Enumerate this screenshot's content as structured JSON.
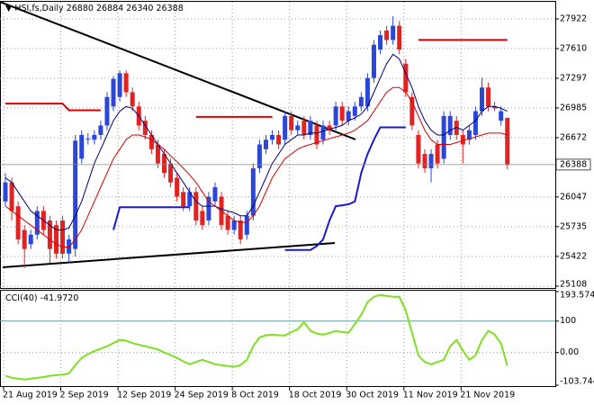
{
  "chart_data": [
    {
      "type": "candlestick",
      "title": "HSI,fs,Daily",
      "categories": [
        "21 Aug 2019",
        null,
        null,
        null,
        null,
        null,
        null,
        null,
        null,
        "2 Sep 2019",
        null,
        null,
        null,
        null,
        null,
        null,
        null,
        null,
        "12 Sep 2019",
        null,
        null,
        null,
        null,
        null,
        null,
        null,
        null,
        "24 Sep 2019",
        null,
        null,
        null,
        null,
        null,
        null,
        null,
        null,
        "8 Oct 2019",
        null,
        null,
        null,
        null,
        null,
        null,
        null,
        null,
        "18 Oct 2019",
        null,
        null,
        null,
        null,
        null,
        null,
        null,
        null,
        "30 Oct 2019",
        null,
        null,
        null,
        null,
        null,
        null,
        null,
        null,
        "11 Nov 2019",
        null,
        null,
        null,
        null,
        null,
        null,
        null,
        null,
        "21 Nov 2019",
        null,
        null,
        null,
        null,
        null,
        null,
        null
      ],
      "open": [
        26000,
        26200,
        25950,
        25700,
        25550,
        25650,
        25900,
        25800,
        25750,
        25800,
        25450,
        25500,
        26450,
        26650,
        26650,
        26700,
        26800,
        27000,
        27100,
        27350,
        27150,
        27000,
        26850,
        26700,
        26600,
        26500,
        26400,
        26250,
        26100,
        25950,
        26100,
        25900,
        25800,
        26000,
        26050,
        25850,
        25700,
        25800,
        25650,
        25850,
        26350,
        26550,
        26650,
        26700,
        26650,
        26900,
        26750,
        26850,
        26700,
        26800,
        26650,
        26800,
        26800,
        27000,
        26850,
        26900,
        27000,
        27000,
        27300,
        27600,
        27800,
        27700,
        27850,
        27450,
        27100,
        26700,
        26500,
        26350,
        26600,
        26450,
        26700,
        26850,
        26700,
        26650,
        26700,
        26950,
        27200,
        27000,
        26850,
        26880
      ],
      "high": [
        26300,
        26250,
        26000,
        25750,
        25700,
        25950,
        25950,
        25850,
        25800,
        25850,
        25650,
        26700,
        26750,
        26720,
        26750,
        26850,
        27150,
        27320,
        27380,
        27380,
        27200,
        27050,
        26900,
        26750,
        26650,
        26550,
        26450,
        26300,
        26150,
        26150,
        26150,
        25950,
        26100,
        26200,
        26100,
        25900,
        25850,
        25850,
        25900,
        26400,
        26650,
        26700,
        26750,
        26750,
        26950,
        26950,
        26850,
        26900,
        26900,
        26850,
        26850,
        26850,
        27050,
        27050,
        27000,
        27050,
        27150,
        27350,
        27700,
        27800,
        27850,
        27950,
        27900,
        27500,
        27150,
        26750,
        26550,
        26550,
        26650,
        26950,
        26950,
        26900,
        26750,
        26800,
        27000,
        27300,
        27250,
        27050,
        27000,
        26884
      ],
      "low": [
        25950,
        25800,
        25550,
        25300,
        25500,
        25600,
        25650,
        25350,
        25400,
        25400,
        25350,
        25420,
        26400,
        26600,
        26600,
        26650,
        26750,
        26950,
        27050,
        27100,
        26950,
        26750,
        26650,
        26500,
        26350,
        26250,
        26150,
        26000,
        25900,
        25900,
        25750,
        25700,
        25750,
        25950,
        25700,
        25650,
        25650,
        25550,
        25600,
        25800,
        26300,
        26500,
        26600,
        26550,
        26600,
        26700,
        26700,
        26650,
        26650,
        26550,
        26600,
        26700,
        26750,
        26800,
        26800,
        26850,
        26950,
        26950,
        27250,
        27550,
        27650,
        27650,
        27550,
        27100,
        26750,
        26350,
        26300,
        26200,
        26350,
        26400,
        26650,
        26650,
        26400,
        26600,
        26650,
        26900,
        26950,
        26950,
        26800,
        26340
      ],
      "close": [
        26200,
        25900,
        25600,
        25500,
        25650,
        25900,
        25700,
        25500,
        25450,
        25450,
        25600,
        26640,
        26700,
        26660,
        26700,
        26800,
        27100,
        27290,
        27350,
        27150,
        27000,
        26800,
        26700,
        26550,
        26400,
        26300,
        26200,
        26050,
        25950,
        26100,
        25800,
        25750,
        26050,
        26150,
        25750,
        25700,
        25800,
        25600,
        25850,
        26350,
        26600,
        26650,
        26700,
        26600,
        26900,
        26750,
        26800,
        26700,
        26850,
        26600,
        26800,
        26750,
        27000,
        26850,
        26950,
        27000,
        27100,
        27300,
        27650,
        27750,
        27700,
        27850,
        27600,
        27150,
        26800,
        26400,
        26350,
        26500,
        26400,
        26900,
        26900,
        26700,
        26600,
        26750,
        26950,
        27200,
        27000,
        26980,
        26950,
        26388
      ],
      "up_color": "#2c46d8",
      "down_color": "#e32222",
      "series": [
        {
          "color": "#00007a",
          "line_width": 1,
          "values": [
            26250,
            26200,
            26100,
            26000,
            25900,
            25850,
            25800,
            25750,
            25700,
            25700,
            25720,
            25850,
            26000,
            26200,
            26400,
            26550,
            26700,
            26850,
            26950,
            27000,
            26980,
            26900,
            26800,
            26700,
            26600,
            26500,
            26400,
            26300,
            26200,
            26100,
            26000,
            25950,
            25950,
            25950,
            25920,
            25900,
            25880,
            25850,
            25850,
            25950,
            26100,
            26250,
            26400,
            26500,
            26600,
            26650,
            26700,
            26700,
            26720,
            26720,
            26740,
            26760,
            26780,
            26800,
            26850,
            26880,
            26920,
            27000,
            27150,
            27300,
            27450,
            27550,
            27500,
            27350,
            27200,
            27000,
            26850,
            26750,
            26700,
            26700,
            26750,
            26780,
            26750,
            26800,
            26850,
            26950,
            27000,
            27000,
            26980,
            26950
          ]
        },
        {
          "color": "#d40000",
          "line_width": 1,
          "values": [
            25950,
            25900,
            25850,
            25800,
            25750,
            25700,
            25650,
            25600,
            25550,
            25520,
            25520,
            25600,
            25700,
            25850,
            26000,
            26150,
            26300,
            26450,
            26550,
            26650,
            26700,
            26700,
            26680,
            26650,
            26600,
            26550,
            26480,
            26420,
            26350,
            26280,
            26200,
            26100,
            26000,
            25950,
            25900,
            25850,
            25800,
            25780,
            25780,
            25850,
            25950,
            26100,
            26250,
            26350,
            26450,
            26500,
            26550,
            26580,
            26600,
            26620,
            26640,
            26660,
            26680,
            26700,
            26720,
            26750,
            26800,
            26850,
            26950,
            27050,
            27150,
            27200,
            27200,
            27150,
            27050,
            26900,
            26750,
            26650,
            26600,
            26600,
            26600,
            26620,
            26640,
            26660,
            26680,
            26700,
            26720,
            26720,
            26720,
            26700
          ]
        },
        {
          "color": "#dd0000",
          "line_width": 2,
          "values": [
            27030,
            27030,
            27030,
            27030,
            27030,
            27030,
            27030,
            27030,
            27030,
            27030,
            26960,
            26960,
            26960,
            26960,
            26960,
            26960,
            null,
            null,
            null,
            null,
            null,
            null,
            null,
            null,
            null,
            null,
            null,
            null,
            null,
            null,
            26890,
            26890,
            26890,
            26890,
            26890,
            26890,
            26890,
            26890,
            26890,
            26890,
            26890,
            26890,
            26890,
            null,
            null,
            null,
            null,
            null,
            null,
            null,
            null,
            null,
            null,
            null,
            null,
            null,
            null,
            null,
            null,
            null,
            null,
            null,
            null,
            null,
            null,
            27700,
            27700,
            27700,
            27700,
            27700,
            27700,
            27700,
            27700,
            27700,
            27700,
            27700,
            27700,
            27700,
            27700,
            27700
          ]
        },
        {
          "color": "#1a1ad0",
          "line_width": 2,
          "values": [
            null,
            null,
            null,
            null,
            null,
            null,
            null,
            null,
            null,
            null,
            null,
            null,
            null,
            null,
            null,
            null,
            null,
            25700,
            25940,
            25940,
            25940,
            25940,
            25940,
            25940,
            25940,
            25940,
            25940,
            25940,
            25940,
            25940,
            null,
            null,
            null,
            null,
            null,
            null,
            null,
            null,
            null,
            null,
            null,
            null,
            null,
            null,
            25490,
            25490,
            25490,
            25490,
            25490,
            25530,
            25600,
            25800,
            25950,
            25960,
            25970,
            26000,
            26300,
            26500,
            26650,
            26780,
            26780,
            26780,
            26780,
            26780,
            null,
            null,
            null,
            null,
            null,
            null,
            null,
            null,
            null,
            null,
            null,
            null,
            null,
            null,
            null,
            null
          ]
        }
      ],
      "ylim": [
        25089,
        28102
      ],
      "yticks": [
        27922,
        27610,
        27297,
        26985,
        26672,
        26047,
        25735,
        25422,
        25108
      ],
      "grid": true
    },
    {
      "type": "line",
      "title": "CCI(40)",
      "readout": "-41.9720",
      "color": "#7ee021",
      "values": [
        -74,
        -80,
        -83,
        -86,
        -83,
        -80,
        -78,
        -74,
        -72,
        -70,
        -66,
        -40,
        -17,
        -5,
        5,
        12,
        20,
        30,
        40,
        38,
        30,
        25,
        20,
        15,
        10,
        0,
        -8,
        -17,
        -28,
        -37,
        -30,
        -23,
        -30,
        -37,
        -40,
        -43,
        -45,
        -40,
        -23,
        20,
        48,
        55,
        57,
        55,
        54,
        65,
        74,
        97,
        69,
        60,
        57,
        62,
        69,
        65,
        63,
        91,
        120,
        160,
        177,
        183,
        180,
        177,
        177,
        134,
        63,
        -9,
        -30,
        -37,
        -30,
        -23,
        20,
        40,
        6,
        -23,
        -9,
        40,
        69,
        57,
        29,
        -41.972
      ],
      "ylim": [
        -103.744,
        193.5745
      ],
      "yticks": [
        193.5745,
        100,
        {
          "value": 0,
          "label": "0.00"
        },
        -103.744
      ]
    }
  ]
}
